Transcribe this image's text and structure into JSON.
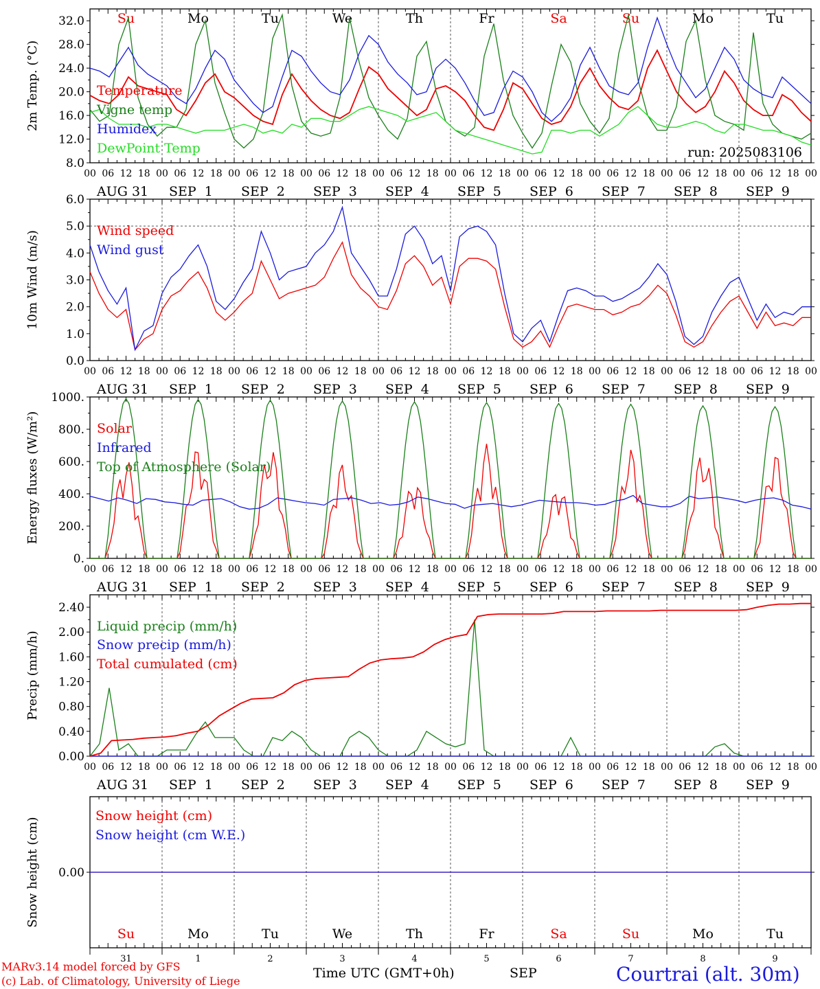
{
  "header": {
    "run": "run: 2025083106",
    "model_line": "MARv3.14 model forced by GFS",
    "credit_line": "(c) Lab. of Climatology, University of Liege",
    "time_axis": "Time UTC (GMT+0h)",
    "month": "SEP",
    "location": "Courtrai (alt. 30m)"
  },
  "colors": {
    "red": "#ee0000",
    "green": "#1a7f1a",
    "blue": "#1a1add",
    "lightgreen": "#22dd22",
    "grid": "#555555"
  },
  "days": {
    "weekday_top": [
      "Su",
      "Mo",
      "Tu",
      "We",
      "Th",
      "Fr",
      "Sa",
      "Su",
      "Mo",
      "Tu"
    ],
    "weekday_red": [
      true,
      false,
      false,
      false,
      false,
      false,
      true,
      true,
      false,
      false
    ],
    "date_labels": [
      "AUG 31",
      "SEP  1",
      "SEP  2",
      "SEP  3",
      "SEP  4",
      "SEP  5",
      "SEP  6",
      "SEP  7",
      "SEP  8",
      "SEP  9"
    ],
    "day_numbers": [
      "31",
      "1",
      "2",
      "3",
      "4",
      "5",
      "6",
      "7",
      "8",
      "9"
    ],
    "hour_ticks": [
      "00",
      "06",
      "12",
      "18"
    ],
    "final_tick": "00"
  },
  "chart_data": [
    {
      "type": "line",
      "ylabel": "2m Temp. (°C)",
      "ylim": [
        8,
        34
      ],
      "yticks": [
        "8.0",
        "12.0",
        "16.0",
        "20.0",
        "24.0",
        "28.0",
        "32.0"
      ],
      "x_unit": "hours from 2025-08-31 00 UTC (3-hourly)",
      "legend": [
        "Temperature",
        "Vigne temp",
        "Humidex",
        "DewPoint Temp"
      ],
      "series": [
        {
          "name": "Temperature",
          "color": "red",
          "values": [
            19.4,
            18.5,
            18.0,
            19.5,
            22.5,
            21.0,
            20.5,
            20.0,
            19.5,
            17.0,
            16.0,
            18.5,
            21.5,
            23.0,
            20.0,
            19.0,
            17.5,
            16.0,
            15.0,
            14.5,
            19.5,
            23.0,
            20.5,
            18.5,
            17.0,
            16.0,
            15.5,
            16.5,
            20.5,
            24.2,
            23.0,
            20.5,
            19.0,
            17.5,
            16.0,
            17.0,
            20.5,
            21.0,
            20.0,
            18.5,
            16.0,
            14.0,
            13.5,
            17.0,
            21.5,
            20.5,
            18.0,
            15.5,
            14.5,
            15.0,
            17.5,
            21.5,
            24.0,
            21.0,
            19.0,
            17.5,
            17.0,
            18.5,
            24.0,
            27.0,
            23.5,
            20.0,
            18.0,
            16.5,
            17.5,
            20.0,
            23.5,
            21.5,
            18.5,
            17.0,
            16.0,
            16.0,
            19.5,
            18.5,
            16.5,
            15.0
          ]
        },
        {
          "name": "Vigne temp",
          "color": "green",
          "values": [
            17.0,
            15.0,
            16.0,
            28.0,
            32.5,
            19.0,
            14.5,
            12.5,
            14.0,
            14.0,
            17.0,
            28.0,
            32.0,
            21.5,
            16.5,
            12.0,
            10.5,
            12.0,
            16.5,
            29.0,
            33.0,
            21.0,
            15.0,
            13.0,
            12.5,
            13.0,
            19.0,
            32.5,
            25.0,
            19.0,
            16.0,
            13.5,
            12.0,
            15.5,
            26.0,
            28.5,
            20.0,
            15.0,
            13.5,
            12.5,
            14.0,
            26.0,
            31.5,
            22.0,
            16.0,
            13.0,
            10.5,
            13.0,
            21.0,
            28.0,
            25.0,
            18.0,
            15.0,
            13.0,
            15.5,
            26.5,
            33.0,
            22.0,
            16.0,
            13.5,
            13.5,
            17.5,
            28.5,
            32.0,
            22.0,
            16.0,
            15.0,
            14.5,
            13.5,
            30.0,
            18.0,
            14.5,
            13.0,
            12.5,
            12.0,
            13.0
          ]
        },
        {
          "name": "Humidex",
          "color": "blue",
          "values": [
            24.0,
            23.5,
            22.5,
            25.0,
            27.5,
            24.5,
            23.0,
            22.0,
            21.0,
            19.0,
            18.0,
            20.5,
            24.0,
            27.0,
            25.5,
            22.0,
            20.0,
            18.0,
            16.5,
            17.5,
            22.5,
            27.0,
            26.0,
            23.5,
            21.5,
            20.0,
            19.5,
            22.0,
            26.5,
            29.5,
            28.0,
            25.0,
            23.0,
            21.5,
            19.5,
            20.0,
            24.0,
            25.5,
            24.0,
            21.5,
            18.5,
            16.0,
            16.5,
            20.5,
            23.5,
            22.5,
            20.0,
            16.5,
            15.0,
            16.5,
            19.0,
            24.5,
            27.5,
            24.0,
            21.0,
            20.0,
            19.5,
            21.5,
            27.5,
            32.5,
            28.0,
            24.0,
            21.5,
            19.0,
            20.5,
            24.0,
            27.5,
            25.5,
            22.0,
            20.5,
            19.5,
            19.0,
            22.5,
            21.0,
            19.5,
            18.0
          ]
        },
        {
          "name": "DewPoint Temp",
          "color": "lightgreen",
          "values": [
            16.5,
            17.0,
            15.5,
            14.5,
            14.5,
            14.5,
            14.0,
            14.5,
            14.5,
            14.0,
            13.5,
            13.0,
            13.5,
            13.5,
            13.5,
            14.0,
            14.5,
            14.0,
            13.0,
            13.5,
            13.0,
            14.5,
            14.0,
            15.5,
            15.5,
            15.0,
            15.0,
            16.0,
            17.0,
            17.5,
            17.0,
            16.5,
            16.0,
            15.0,
            15.5,
            16.0,
            16.5,
            15.0,
            13.5,
            13.0,
            12.5,
            12.0,
            11.5,
            11.0,
            10.5,
            10.0,
            9.5,
            9.8,
            13.5,
            13.5,
            13.0,
            13.5,
            13.5,
            12.5,
            13.5,
            14.5,
            16.5,
            17.5,
            16.0,
            14.5,
            14.0,
            14.0,
            14.5,
            15.0,
            14.5,
            13.5,
            13.0,
            14.5,
            14.5,
            14.0,
            13.5,
            13.5,
            13.0,
            12.5,
            11.5,
            11.0
          ]
        }
      ]
    },
    {
      "type": "line",
      "ylabel": "10m Wind (m/s)",
      "ylim": [
        0,
        6
      ],
      "yticks": [
        "0.0",
        "1.0",
        "2.0",
        "3.0",
        "4.0",
        "5.0",
        "6.0"
      ],
      "reference_line": 5.0,
      "legend": [
        "Wind speed",
        "Wind gust"
      ],
      "series": [
        {
          "name": "Wind speed",
          "color": "red",
          "values": [
            3.3,
            2.5,
            1.9,
            1.6,
            1.9,
            0.4,
            0.8,
            1.0,
            1.9,
            2.4,
            2.6,
            3.0,
            3.3,
            2.7,
            1.8,
            1.5,
            1.8,
            2.2,
            2.5,
            3.7,
            3.0,
            2.3,
            2.5,
            2.6,
            2.7,
            2.8,
            3.1,
            3.8,
            4.4,
            3.2,
            2.7,
            2.4,
            2.0,
            1.9,
            2.6,
            3.6,
            3.9,
            3.5,
            2.8,
            3.1,
            2.1,
            3.5,
            3.8,
            3.8,
            3.7,
            3.4,
            2.0,
            0.8,
            0.5,
            0.7,
            1.1,
            0.5,
            1.3,
            2.0,
            2.1,
            2.0,
            1.9,
            1.9,
            1.7,
            1.8,
            2.0,
            2.1,
            2.4,
            2.8,
            2.5,
            1.7,
            0.7,
            0.5,
            0.7,
            1.3,
            1.8,
            2.2,
            2.4,
            1.8,
            1.2,
            1.8,
            1.3,
            1.4,
            1.3,
            1.6,
            1.6
          ]
        },
        {
          "name": "Wind gust",
          "color": "blue",
          "values": [
            4.3,
            3.3,
            2.6,
            2.1,
            2.7,
            0.4,
            1.1,
            1.3,
            2.5,
            3.1,
            3.4,
            3.9,
            4.3,
            3.5,
            2.2,
            1.9,
            2.3,
            2.9,
            3.4,
            4.8,
            4.0,
            3.0,
            3.3,
            3.4,
            3.5,
            4.0,
            4.3,
            4.8,
            5.7,
            4.0,
            3.5,
            3.0,
            2.4,
            2.4,
            3.4,
            4.7,
            5.0,
            4.5,
            3.6,
            3.9,
            2.6,
            4.6,
            4.9,
            5.0,
            4.8,
            4.3,
            2.5,
            1.0,
            0.7,
            1.2,
            1.5,
            0.7,
            1.7,
            2.6,
            2.7,
            2.6,
            2.4,
            2.4,
            2.2,
            2.3,
            2.5,
            2.7,
            3.1,
            3.6,
            3.2,
            2.2,
            0.9,
            0.6,
            0.9,
            1.8,
            2.4,
            2.9,
            3.1,
            2.3,
            1.5,
            2.1,
            1.6,
            1.8,
            1.7,
            2.0,
            2.0
          ]
        }
      ]
    },
    {
      "type": "line",
      "ylabel": "Energy fluxes (W/m²)",
      "ylim": [
        0,
        1000
      ],
      "yticks": [
        "0.",
        "200.",
        "400.",
        "600.",
        "800.",
        "1000."
      ],
      "legend": [
        "Solar",
        "Infrared",
        "Top of Atmosphere (Solar)"
      ],
      "series": [
        {
          "name": "Solar",
          "color": "red",
          "peaks": [
            620,
            700,
            700,
            590,
            490,
            710,
            450,
            680,
            670,
            660
          ]
        },
        {
          "name": "Infrared",
          "color": "blue",
          "values": [
            385,
            370,
            355,
            375,
            360,
            340,
            370,
            365,
            350,
            345,
            335,
            330,
            360,
            365,
            370,
            350,
            320,
            305,
            310,
            335,
            375,
            365,
            355,
            345,
            340,
            330,
            365,
            370,
            375,
            360,
            340,
            345,
            330,
            335,
            350,
            380,
            370,
            355,
            340,
            335,
            310,
            330,
            335,
            340,
            330,
            320,
            330,
            345,
            360,
            355,
            350,
            345,
            345,
            340,
            330,
            335,
            355,
            365,
            390,
            340,
            330,
            320,
            320,
            340,
            385,
            370,
            375,
            380,
            370,
            360,
            345,
            360,
            370,
            375,
            360,
            330,
            320,
            305
          ]
        },
        {
          "name": "Top of Atmosphere (Solar)",
          "color": "green",
          "peaks": [
            990,
            985,
            980,
            975,
            970,
            965,
            960,
            955,
            945,
            940
          ]
        }
      ]
    },
    {
      "type": "line",
      "ylabel": "Precip (mm/h)",
      "ylim": [
        0,
        2.6
      ],
      "yticks": [
        "0.00",
        "0.40",
        "0.80",
        "1.20",
        "1.60",
        "2.00",
        "2.40"
      ],
      "legend": [
        "Liquid precip (mm/h)",
        "Snow precip (mm/h)",
        "Total cumulated (cm)"
      ],
      "series": [
        {
          "name": "Liquid precip (mm/h)",
          "color": "green",
          "values": [
            0,
            0.2,
            1.1,
            0.1,
            0.2,
            0,
            0,
            0,
            0.1,
            0.1,
            0.1,
            0.35,
            0.55,
            0.3,
            0.3,
            0.3,
            0.1,
            0,
            0,
            0.3,
            0.25,
            0.4,
            0.3,
            0.1,
            0,
            0,
            0,
            0.3,
            0.4,
            0.3,
            0.1,
            0,
            0,
            0,
            0.1,
            0.4,
            0.3,
            0.2,
            0.15,
            0.2,
            2.2,
            0.1,
            0,
            0,
            0,
            0,
            0,
            0,
            0,
            0,
            0.3,
            0,
            0,
            0,
            0,
            0,
            0,
            0,
            0,
            0,
            0,
            0,
            0,
            0,
            0,
            0.15,
            0.2,
            0.05,
            0,
            0,
            0,
            0,
            0,
            0,
            0,
            0
          ]
        },
        {
          "name": "Snow precip (mm/h)",
          "color": "blue",
          "values": [
            0,
            0
          ]
        },
        {
          "name": "Total cumulated (cm)",
          "color": "red",
          "values": [
            0,
            0.05,
            0.25,
            0.26,
            0.27,
            0.29,
            0.3,
            0.31,
            0.33,
            0.37,
            0.4,
            0.5,
            0.65,
            0.75,
            0.85,
            0.92,
            0.93,
            0.94,
            1.02,
            1.15,
            1.22,
            1.25,
            1.26,
            1.27,
            1.28,
            1.4,
            1.5,
            1.55,
            1.57,
            1.58,
            1.6,
            1.68,
            1.8,
            1.88,
            1.93,
            1.96,
            2.25,
            2.28,
            2.29,
            2.29,
            2.29,
            2.29,
            2.29,
            2.3,
            2.33,
            2.33,
            2.33,
            2.33,
            2.34,
            2.34,
            2.34,
            2.34,
            2.34,
            2.35,
            2.35,
            2.35,
            2.35,
            2.35,
            2.35,
            2.35,
            2.35,
            2.36,
            2.4,
            2.43,
            2.45,
            2.45,
            2.46,
            2.46
          ]
        }
      ]
    },
    {
      "type": "line",
      "ylabel": "Snow height (cm)",
      "ylim": [
        -1,
        1
      ],
      "yticks": [
        "0.00"
      ],
      "legend": [
        "Snow height (cm)",
        "Snow height (cm W.E.)"
      ],
      "series": [
        {
          "name": "Snow height (cm)",
          "color": "red",
          "values": [
            0,
            0
          ]
        },
        {
          "name": "Snow height (cm W.E.)",
          "color": "blue",
          "values": [
            0,
            0
          ]
        }
      ]
    }
  ]
}
